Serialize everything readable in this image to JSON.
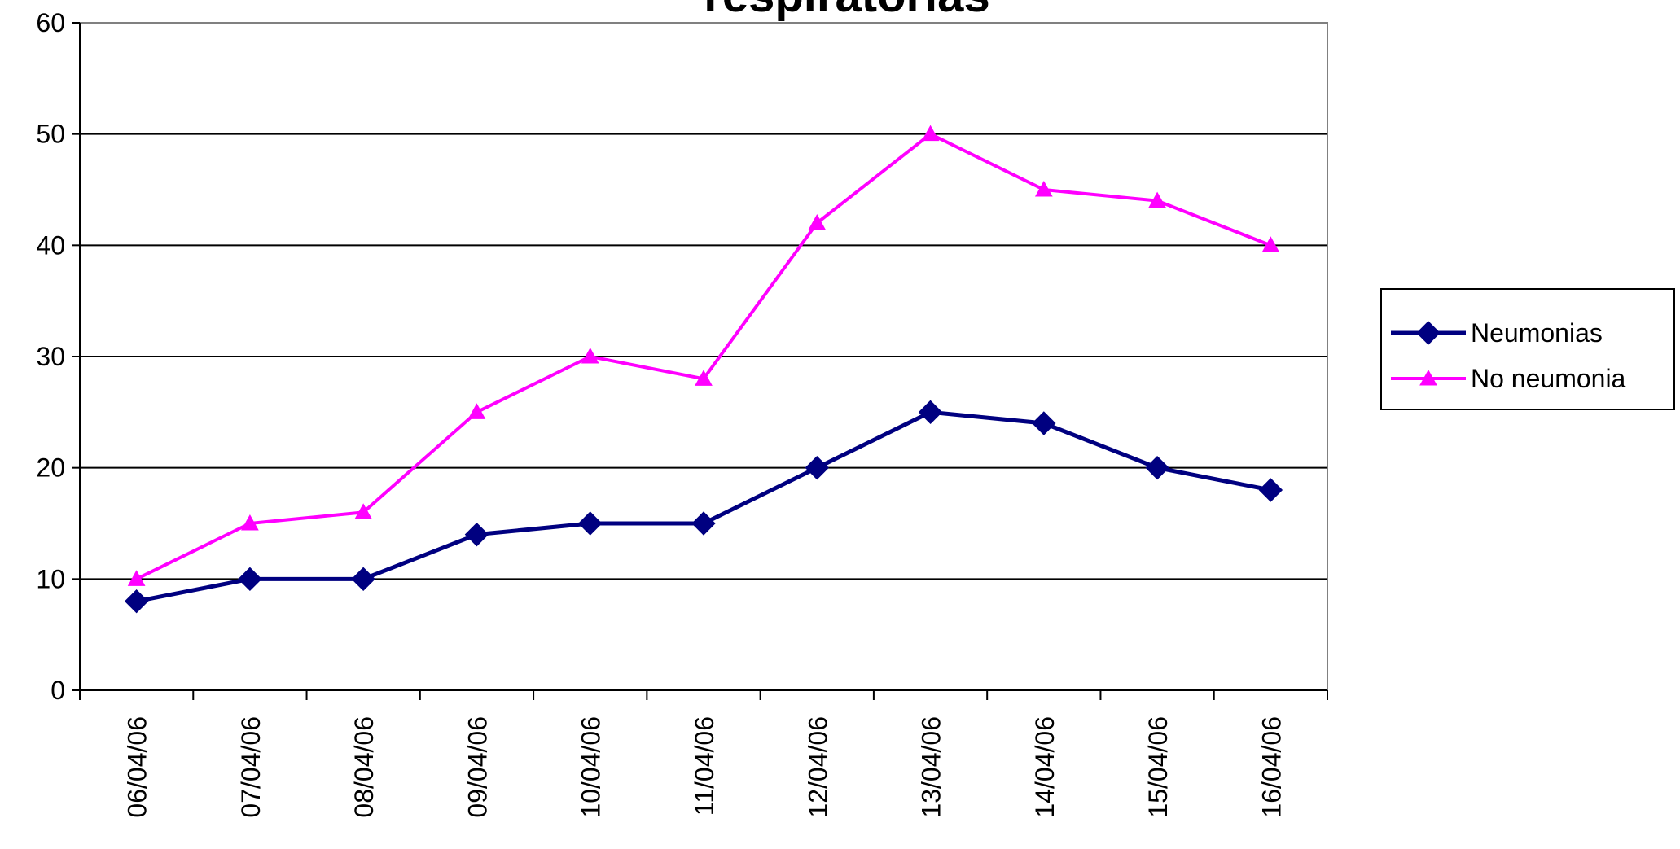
{
  "chart_data": {
    "type": "line",
    "title": "respiratorias",
    "xlabel": "",
    "ylabel": "",
    "ylim": [
      0,
      60
    ],
    "yticks": [
      0,
      10,
      20,
      30,
      40,
      50,
      60
    ],
    "grid": true,
    "legend_position": "right",
    "categories": [
      "06/04/06",
      "07/04/06",
      "08/04/06",
      "09/04/06",
      "10/04/06",
      "11/04/06",
      "12/04/06",
      "13/04/06",
      "14/04/06",
      "15/04/06",
      "16/04/06"
    ],
    "series": [
      {
        "name": "Neumonias",
        "values": [
          8,
          10,
          10,
          14,
          15,
          15,
          20,
          25,
          24,
          20,
          18
        ],
        "color": "#000080",
        "marker": "diamond"
      },
      {
        "name": "No neumonia",
        "values": [
          10,
          15,
          16,
          25,
          30,
          28,
          42,
          50,
          45,
          44,
          40
        ],
        "color": "#ff00ff",
        "marker": "triangle"
      }
    ]
  }
}
